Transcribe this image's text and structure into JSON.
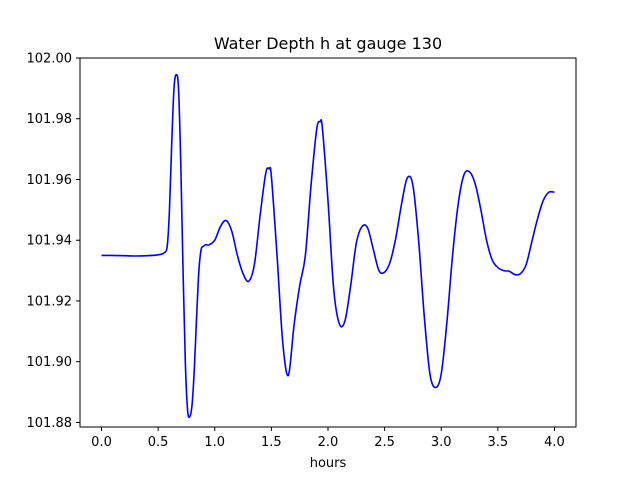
{
  "chart_data": {
    "type": "line",
    "title": "Water Depth h at gauge 130",
    "xlabel": "hours",
    "ylabel": "",
    "xlim": [
      -0.19,
      4.19
    ],
    "ylim": [
      101.8785,
      102.0
    ],
    "xticks": [
      0.0,
      0.5,
      1.0,
      1.5,
      2.0,
      2.5,
      3.0,
      3.5,
      4.0
    ],
    "xtick_labels": [
      "0.0",
      "0.5",
      "1.0",
      "1.5",
      "2.0",
      "2.5",
      "3.0",
      "3.5",
      "4.0"
    ],
    "yticks": [
      101.88,
      101.9,
      101.92,
      101.94,
      101.96,
      101.98,
      102.0
    ],
    "ytick_labels": [
      "101.88",
      "101.90",
      "101.92",
      "101.94",
      "101.96",
      "101.98",
      "102.00"
    ],
    "grid": false,
    "series": [
      {
        "color": "#0000ff",
        "x": [
          0.0,
          0.1,
          0.2,
          0.3,
          0.4,
          0.5,
          0.55,
          0.58,
          0.6,
          0.62,
          0.64,
          0.66,
          0.68,
          0.7,
          0.72,
          0.74,
          0.76,
          0.78,
          0.8,
          0.82,
          0.84,
          0.86,
          0.88,
          0.9,
          0.92,
          0.95,
          1.0,
          1.05,
          1.1,
          1.15,
          1.2,
          1.25,
          1.3,
          1.35,
          1.4,
          1.45,
          1.48,
          1.5,
          1.55,
          1.6,
          1.65,
          1.7,
          1.75,
          1.8,
          1.85,
          1.9,
          1.93,
          1.95,
          2.0,
          2.05,
          2.1,
          2.15,
          2.2,
          2.25,
          2.3,
          2.35,
          2.4,
          2.45,
          2.5,
          2.55,
          2.6,
          2.65,
          2.7,
          2.75,
          2.8,
          2.85,
          2.9,
          2.95,
          3.0,
          3.05,
          3.1,
          3.15,
          3.2,
          3.25,
          3.3,
          3.35,
          3.4,
          3.45,
          3.5,
          3.55,
          3.6,
          3.65,
          3.7,
          3.75,
          3.8,
          3.85,
          3.9,
          3.95,
          4.0
        ],
        "y": [
          101.935,
          101.935,
          101.9349,
          101.9348,
          101.9349,
          101.9352,
          101.9358,
          101.938,
          101.95,
          101.972,
          101.99,
          101.9945,
          101.99,
          101.965,
          101.93,
          101.9,
          101.884,
          101.882,
          101.886,
          101.898,
          101.915,
          101.93,
          101.937,
          101.938,
          101.9385,
          101.9385,
          101.94,
          101.9445,
          101.9465,
          101.943,
          101.935,
          101.929,
          101.9265,
          101.932,
          101.948,
          101.962,
          101.9635,
          101.961,
          101.935,
          101.9065,
          101.8955,
          101.912,
          101.925,
          101.935,
          101.958,
          101.9765,
          101.979,
          101.977,
          101.953,
          101.924,
          101.9125,
          101.9135,
          101.925,
          101.939,
          101.9445,
          101.944,
          101.937,
          101.93,
          101.9295,
          101.933,
          101.941,
          101.952,
          101.9605,
          101.958,
          101.94,
          101.915,
          101.896,
          101.8915,
          101.896,
          101.913,
          101.935,
          101.952,
          101.9615,
          101.9625,
          101.9585,
          101.95,
          101.94,
          101.9335,
          101.931,
          101.93,
          101.9298,
          101.9287,
          101.929,
          101.932,
          101.9395,
          101.947,
          101.953,
          101.9558,
          101.9558
        ]
      }
    ]
  }
}
